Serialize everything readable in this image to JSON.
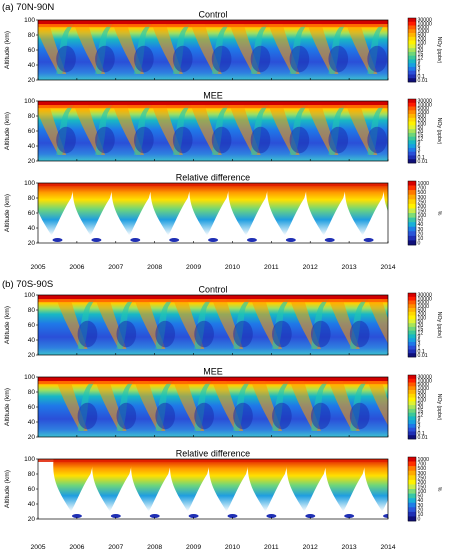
{
  "sections": [
    {
      "label": "(a) 70N-90N",
      "panels": [
        {
          "title": "Control",
          "kind": "abs",
          "hemisphere": "N"
        },
        {
          "title": "MEE",
          "kind": "abs",
          "hemisphere": "N"
        },
        {
          "title": "Relative difference",
          "kind": "rel",
          "hemisphere": "N"
        }
      ]
    },
    {
      "label": "(b) 70S-90S",
      "panels": [
        {
          "title": "Control",
          "kind": "abs",
          "hemisphere": "S"
        },
        {
          "title": "MEE",
          "kind": "abs",
          "hemisphere": "S"
        },
        {
          "title": "Relative difference",
          "kind": "rel",
          "hemisphere": "S"
        }
      ]
    }
  ],
  "y_axis": {
    "label": "Altitude (km)",
    "ticks": [
      "20",
      "40",
      "60",
      "80",
      "100"
    ],
    "range": [
      20,
      100
    ]
  },
  "x_axis": {
    "ticks": [
      "2005",
      "2006",
      "2007",
      "2008",
      "2009",
      "2010",
      "2011",
      "2012",
      "2013",
      "2014"
    ],
    "range": [
      2005,
      2014
    ]
  },
  "colorbars": {
    "abs": {
      "label": "NOy (ppbv)",
      "ticks": [
        "30000",
        "10000",
        "5000",
        "1000",
        "500",
        "200",
        "100",
        "50",
        "20",
        "15",
        "12",
        "9",
        "6",
        "3",
        "1",
        "0.1",
        "0.01"
      ],
      "colors": [
        "#d60000",
        "#ff1a00",
        "#ff5a00",
        "#ff8c00",
        "#ffb400",
        "#ffd800",
        "#fff200",
        "#dff233",
        "#a8e45a",
        "#6fd67a",
        "#3cc89a",
        "#18b8c4",
        "#17a0e0",
        "#1f78e8",
        "#2a4fd8",
        "#1f2fb4",
        "#10107a"
      ]
    },
    "rel": {
      "label": "%",
      "ticks": [
        "1000",
        "700",
        "500",
        "300",
        "250",
        "200",
        "150",
        "100",
        "50",
        "40",
        "30",
        "20",
        "10",
        "0"
      ],
      "colors": [
        "#d60000",
        "#ff3000",
        "#ff7a00",
        "#ffaa00",
        "#ffd200",
        "#fff200",
        "#c8ec4a",
        "#7fdc78",
        "#38c6a8",
        "#18b0d8",
        "#1f7ee6",
        "#2a55d8",
        "#1f2fb4",
        "#10107a"
      ]
    }
  },
  "chart_data": [
    {
      "type": "heatmap",
      "title": "Control",
      "region": "70N-90N",
      "xlabel": "",
      "ylabel": "Altitude (km)",
      "xlim": [
        2005,
        2014
      ],
      "ylim": [
        20,
        100
      ],
      "colorbar_label": "NOy (ppbv)"
    },
    {
      "type": "heatmap",
      "title": "MEE",
      "region": "70N-90N",
      "xlabel": "",
      "ylabel": "Altitude (km)",
      "xlim": [
        2005,
        2014
      ],
      "ylim": [
        20,
        100
      ],
      "colorbar_label": "NOy (ppbv)"
    },
    {
      "type": "heatmap",
      "title": "Relative difference",
      "region": "70N-90N",
      "xlabel": "",
      "ylabel": "Altitude (km)",
      "xlim": [
        2005,
        2014
      ],
      "ylim": [
        20,
        100
      ],
      "colorbar_label": "%"
    },
    {
      "type": "heatmap",
      "title": "Control",
      "region": "70S-90S",
      "xlabel": "",
      "ylabel": "Altitude (km)",
      "xlim": [
        2005,
        2014
      ],
      "ylim": [
        20,
        100
      ],
      "colorbar_label": "NOy (ppbv)"
    },
    {
      "type": "heatmap",
      "title": "MEE",
      "region": "70S-90S",
      "xlabel": "",
      "ylabel": "Altitude (km)",
      "xlim": [
        2005,
        2014
      ],
      "ylim": [
        20,
        100
      ],
      "colorbar_label": "NOy (ppbv)"
    },
    {
      "type": "heatmap",
      "title": "Relative difference",
      "region": "70S-90S",
      "xlabel": "",
      "ylabel": "Altitude (km)",
      "xlim": [
        2005,
        2014
      ],
      "ylim": [
        20,
        100
      ],
      "colorbar_label": "%"
    }
  ]
}
